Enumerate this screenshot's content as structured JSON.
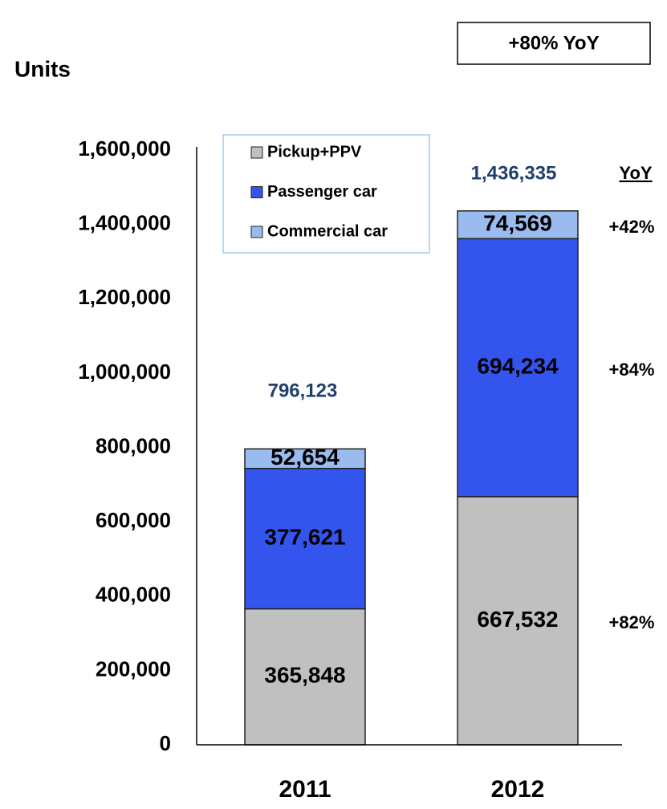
{
  "chart_data": {
    "type": "stacked_bar",
    "title": "+80% YoY",
    "y_label": "Units",
    "categories": [
      "2011",
      "2012"
    ],
    "series": [
      {
        "name": "Pickup+PPV",
        "color": "#c0c0c0",
        "values": [
          365848,
          667532
        ],
        "value_labels": [
          "365,848",
          "667,532"
        ]
      },
      {
        "name": "Passenger car",
        "color": "#3355ee",
        "values": [
          377621,
          694234
        ],
        "value_labels": [
          "377,621",
          "694,234"
        ]
      },
      {
        "name": "Commercial car",
        "color": "#99bbee",
        "values": [
          52654,
          74569
        ],
        "value_labels": [
          "52,654",
          "74,569"
        ]
      }
    ],
    "totals": [
      796123,
      1436335
    ],
    "total_labels": [
      "796,123",
      "1,436,335"
    ],
    "yoy_header": "YoY",
    "yoy_labels": [
      "+82%",
      "+84%",
      "+42%"
    ],
    "ylim": [
      0,
      1600000
    ],
    "yticks": [
      0,
      {
        "value": 200000,
        "label": "200,000"
      },
      {
        "value": 400000,
        "label": "400,000"
      },
      {
        "value": 600000,
        "label": "600,000"
      },
      {
        "value": 800000,
        "label": "800,000"
      },
      {
        "value": 1000000,
        "label": "1,000,000"
      },
      {
        "value": 1200000,
        "label": "1,200,000"
      },
      {
        "value": 1400000,
        "label": "1,400,000"
      },
      {
        "value": 1600000,
        "label": "1,600,000"
      }
    ],
    "grid": false
  }
}
